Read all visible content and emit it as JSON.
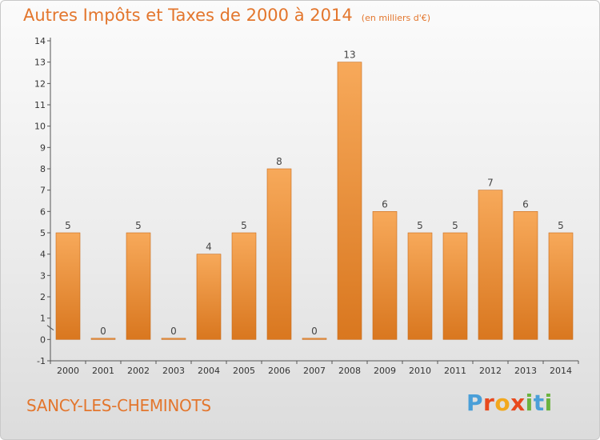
{
  "chart_data": {
    "type": "bar",
    "title": "Autres Impôts et Taxes de 2000 à 2014",
    "unit": "(en milliers d'€)",
    "categories": [
      "2000",
      "2001",
      "2002",
      "2003",
      "2004",
      "2005",
      "2006",
      "2007",
      "2008",
      "2009",
      "2010",
      "2011",
      "2012",
      "2013",
      "2014"
    ],
    "values": [
      5,
      0,
      5,
      0,
      4,
      5,
      8,
      0,
      13,
      6,
      5,
      5,
      7,
      6,
      5
    ],
    "value_labels": [
      "5",
      "0",
      "5",
      "0",
      "4",
      "5",
      "8",
      "0",
      "13",
      "6",
      "5",
      "5",
      "7",
      "6",
      "5"
    ],
    "ylim": [
      -1,
      14
    ],
    "yticks": [
      "-1",
      "0",
      "1",
      "2",
      "3",
      "4",
      "5",
      "6",
      "7",
      "8",
      "9",
      "10",
      "11",
      "12",
      "13",
      "14"
    ],
    "grid": false,
    "colors": {
      "bar_light": "#f7a95a",
      "bar_dark": "#d9771f",
      "bar_edge": "#c96b1a",
      "title": "#e3762d"
    }
  },
  "footer": {
    "commune": "SANCY-LES-CHEMINOTS",
    "logo_letters": [
      "P",
      "r",
      "o",
      "x",
      "i",
      "t",
      "i"
    ],
    "logo_colors": [
      "#4a9fd8",
      "#e8491d",
      "#f2a81d",
      "#e8491d",
      "#6cb33f",
      "#4a9fd8",
      "#6cb33f"
    ]
  }
}
